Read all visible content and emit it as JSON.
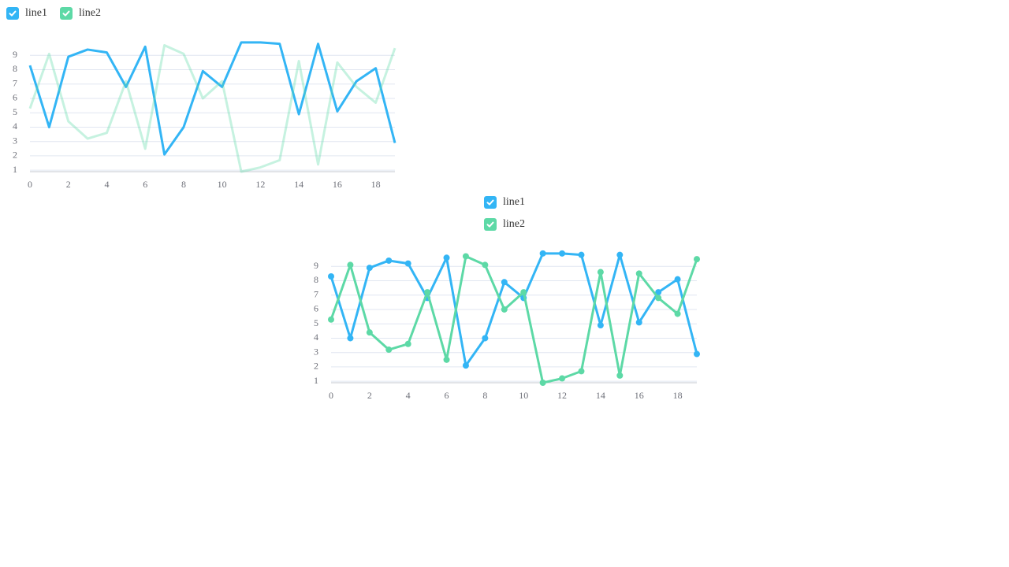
{
  "chart_data": [
    {
      "type": "line",
      "markers": false,
      "legend": "top-left",
      "legend_layout": "horizontal",
      "x": [
        0,
        1,
        2,
        3,
        4,
        5,
        6,
        7,
        8,
        9,
        10,
        11,
        12,
        13,
        14,
        15,
        16,
        17,
        18,
        19
      ],
      "xlim": [
        0,
        19
      ],
      "xticks": [
        0,
        2,
        4,
        6,
        8,
        10,
        12,
        14,
        16,
        18
      ],
      "ylim": [
        0.9,
        10
      ],
      "yticks": [
        1,
        2,
        3,
        4,
        5,
        6,
        7,
        8,
        9
      ],
      "grid": true,
      "series": [
        {
          "name": "line1",
          "color": "#33b5f5",
          "values": [
            8.3,
            4.0,
            8.9,
            9.4,
            9.2,
            6.8,
            9.6,
            2.1,
            4.0,
            7.9,
            6.8,
            9.9,
            9.9,
            9.8,
            4.9,
            9.8,
            5.1,
            7.2,
            8.1,
            2.9
          ]
        },
        {
          "name": "line2",
          "color": "#5dd9a6",
          "opacity": 0.35,
          "values": [
            5.3,
            9.1,
            4.4,
            3.2,
            3.6,
            7.2,
            2.5,
            9.7,
            9.1,
            6.0,
            7.2,
            0.9,
            1.2,
            1.7,
            8.6,
            1.4,
            8.5,
            6.8,
            5.7,
            9.5
          ]
        }
      ]
    },
    {
      "type": "line",
      "markers": true,
      "legend": "top-center",
      "legend_layout": "vertical",
      "x": [
        0,
        1,
        2,
        3,
        4,
        5,
        6,
        7,
        8,
        9,
        10,
        11,
        12,
        13,
        14,
        15,
        16,
        17,
        18,
        19
      ],
      "xlim": [
        0,
        19
      ],
      "xticks": [
        0,
        2,
        4,
        6,
        8,
        10,
        12,
        14,
        16,
        18
      ],
      "ylim": [
        0.9,
        10
      ],
      "yticks": [
        1,
        2,
        3,
        4,
        5,
        6,
        7,
        8,
        9
      ],
      "grid": true,
      "series": [
        {
          "name": "line1",
          "color": "#33b5f5",
          "values": [
            8.3,
            4.0,
            8.9,
            9.4,
            9.2,
            6.8,
            9.6,
            2.1,
            4.0,
            7.9,
            6.8,
            9.9,
            9.9,
            9.8,
            4.9,
            9.8,
            5.1,
            7.2,
            8.1,
            2.9
          ]
        },
        {
          "name": "line2",
          "color": "#5dd9a6",
          "values": [
            5.3,
            9.1,
            4.4,
            3.2,
            3.6,
            7.2,
            2.5,
            9.7,
            9.1,
            6.0,
            7.2,
            0.9,
            1.2,
            1.7,
            8.6,
            1.4,
            8.5,
            6.8,
            5.7,
            9.5
          ]
        }
      ]
    }
  ]
}
